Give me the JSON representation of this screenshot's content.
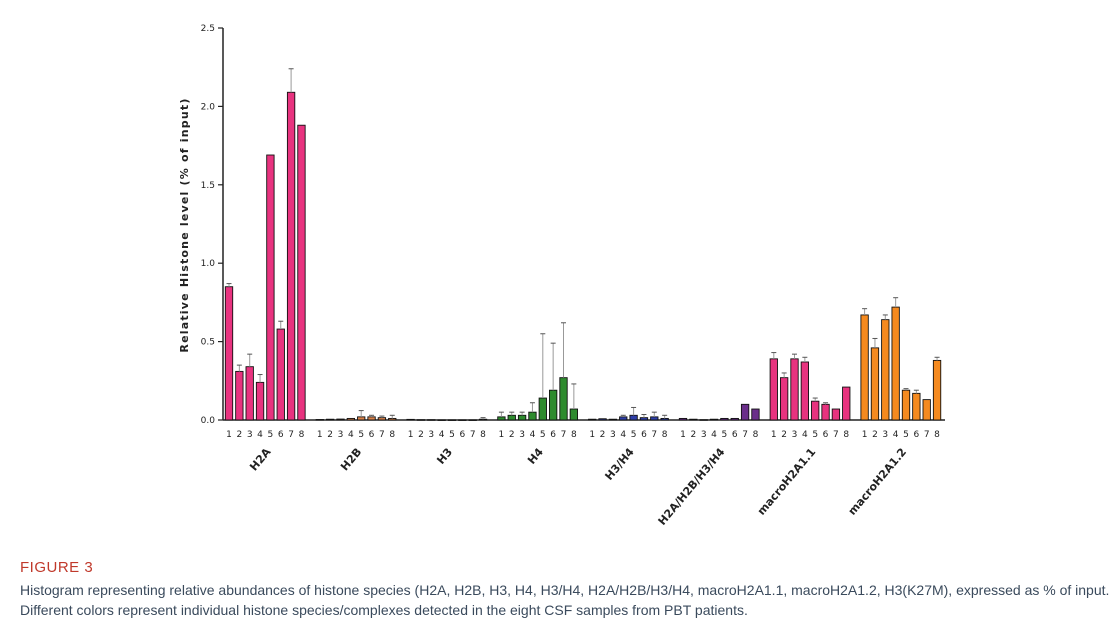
{
  "chart_data": {
    "type": "bar",
    "ylabel": "Relative Histone level (% of input)",
    "ylim": [
      0,
      2.5
    ],
    "yticks": [
      "0.0",
      "0.5",
      "1.0",
      "1.5",
      "2.0",
      "2.5"
    ],
    "sample_labels": [
      "1",
      "2",
      "3",
      "4",
      "5",
      "6",
      "7",
      "8"
    ],
    "groups": [
      {
        "name": "H2A",
        "color": "#e8337f",
        "values": [
          0.85,
          0.31,
          0.34,
          0.24,
          1.69,
          0.58,
          2.09,
          1.88
        ],
        "errors": [
          0.02,
          0.04,
          0.08,
          0.05,
          0.0,
          0.05,
          0.15,
          0.0
        ]
      },
      {
        "name": "H2B",
        "color": "#d9824a",
        "values": [
          0.003,
          0.005,
          0.006,
          0.01,
          0.02,
          0.02,
          0.015,
          0.01
        ],
        "errors": [
          0.0,
          0.0,
          0.0,
          0.0,
          0.04,
          0.01,
          0.01,
          0.02
        ]
      },
      {
        "name": "H3",
        "color": "#8a6a9a",
        "values": [
          0.004,
          0.002,
          0.002,
          0.001,
          0.001,
          0.001,
          0.001,
          0.005
        ],
        "errors": [
          0.0,
          0.0,
          0.0,
          0.0,
          0.0,
          0.0,
          0.0,
          0.01
        ]
      },
      {
        "name": "H4",
        "color": "#2e8b2e",
        "values": [
          0.02,
          0.03,
          0.03,
          0.05,
          0.14,
          0.19,
          0.27,
          0.07
        ],
        "errors": [
          0.03,
          0.02,
          0.02,
          0.06,
          0.41,
          0.3,
          0.35,
          0.16
        ]
      },
      {
        "name": "H3/H4",
        "color": "#2e3ea8",
        "values": [
          0.005,
          0.008,
          0.005,
          0.02,
          0.03,
          0.015,
          0.02,
          0.01
        ],
        "errors": [
          0.0,
          0.0,
          0.0,
          0.01,
          0.05,
          0.02,
          0.03,
          0.02
        ]
      },
      {
        "name": "H2A/H2B/H3/H4",
        "color": "#6a2e8a",
        "values": [
          0.01,
          0.005,
          0.002,
          0.005,
          0.01,
          0.01,
          0.1,
          0.07
        ],
        "errors": [
          0.0,
          0.0,
          0.0,
          0.0,
          0.0,
          0.0,
          0.0,
          0.0
        ]
      },
      {
        "name": "macroH2A1.1",
        "color": "#e8337f",
        "values": [
          0.39,
          0.27,
          0.39,
          0.37,
          0.12,
          0.1,
          0.07,
          0.21
        ],
        "errors": [
          0.04,
          0.03,
          0.03,
          0.03,
          0.02,
          0.01,
          0.0,
          0.0
        ]
      },
      {
        "name": "macroH2A1.2",
        "color": "#f58a1f",
        "values": [
          0.67,
          0.46,
          0.64,
          0.72,
          0.19,
          0.17,
          0.13,
          0.38
        ],
        "errors": [
          0.04,
          0.06,
          0.03,
          0.06,
          0.01,
          0.02,
          0.0,
          0.02
        ]
      }
    ]
  },
  "caption": {
    "label": "FIGURE 3",
    "text": "Histogram representing relative abundances of histone species (H2A, H2B, H3, H4, H3/H4, H2A/H2B/H3/H4, macroH2A1.1, macroH2A1.2, H3(K27M), expressed as % of input. Different colors represent individual histone species/complexes detected in the eight CSF samples from PBT patients."
  }
}
